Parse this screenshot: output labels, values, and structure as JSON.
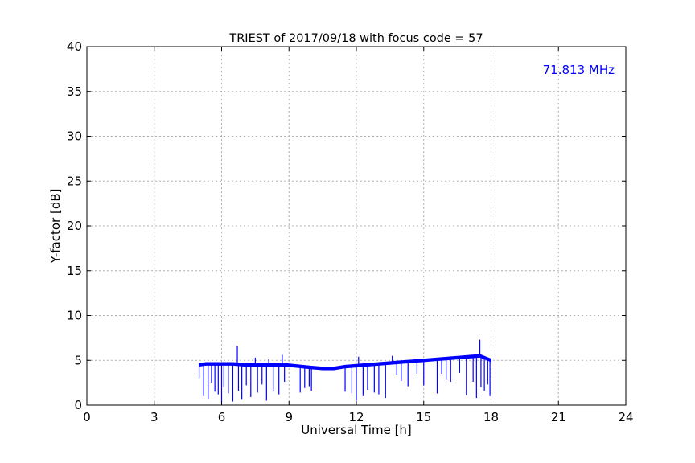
{
  "chart_data": {
    "type": "line",
    "title": "TRIEST of 2017/09/18 with focus code = 57",
    "xlabel": "Universal Time [h]",
    "ylabel": "Y-factor [dB]",
    "xlim": [
      0,
      24
    ],
    "ylim": [
      0,
      40
    ],
    "xticks": [
      0,
      3,
      6,
      9,
      12,
      15,
      18,
      21,
      24
    ],
    "yticks": [
      0,
      5,
      10,
      15,
      20,
      25,
      30,
      35,
      40
    ],
    "grid": true,
    "annotation": {
      "text": "71.813 MHz",
      "color": "#0000ff",
      "placement": "top-right"
    },
    "series": [
      {
        "color": "#0000ff",
        "x": [
          5.0,
          5.3,
          5.6,
          6.0,
          6.5,
          7.0,
          7.5,
          8.0,
          8.5,
          8.8,
          9.2,
          9.6,
          10.0,
          10.5,
          11.0,
          11.5,
          12.0,
          12.5,
          13.0,
          13.5,
          14.0,
          14.5,
          15.0,
          15.5,
          16.0,
          16.5,
          17.0,
          17.5,
          18.0
        ],
        "y": [
          4.5,
          4.6,
          4.6,
          4.6,
          4.6,
          4.5,
          4.5,
          4.5,
          4.5,
          4.5,
          4.4,
          4.3,
          4.2,
          4.1,
          4.1,
          4.3,
          4.4,
          4.5,
          4.6,
          4.7,
          4.8,
          4.9,
          5.0,
          5.1,
          5.2,
          5.3,
          5.4,
          5.5,
          5.0
        ],
        "spikes": [
          [
            5.0,
            3.0
          ],
          [
            5.2,
            1.0
          ],
          [
            5.4,
            0.7
          ],
          [
            5.55,
            2.5
          ],
          [
            5.7,
            1.5
          ],
          [
            5.85,
            1.2
          ],
          [
            6.0,
            0.1
          ],
          [
            6.1,
            2.0
          ],
          [
            6.3,
            1.3
          ],
          [
            6.5,
            0.4
          ],
          [
            6.7,
            6.6
          ],
          [
            6.75,
            1.6
          ],
          [
            6.9,
            0.6
          ],
          [
            7.1,
            2.2
          ],
          [
            7.3,
            0.9
          ],
          [
            7.5,
            5.3
          ],
          [
            7.6,
            1.4
          ],
          [
            7.8,
            2.3
          ],
          [
            8.0,
            0.5
          ],
          [
            8.1,
            5.1
          ],
          [
            8.3,
            1.5
          ],
          [
            8.55,
            1.2
          ],
          [
            8.7,
            5.6
          ],
          [
            8.8,
            2.6
          ],
          [
            9.5,
            1.4
          ],
          [
            9.7,
            1.9
          ],
          [
            9.9,
            2.1
          ],
          [
            10.0,
            1.6
          ],
          [
            11.5,
            1.5
          ],
          [
            11.8,
            1.3
          ],
          [
            12.0,
            0.5
          ],
          [
            12.1,
            5.4
          ],
          [
            12.3,
            1.0
          ],
          [
            12.5,
            1.7
          ],
          [
            12.8,
            1.4
          ],
          [
            13.0,
            1.2
          ],
          [
            13.3,
            0.8
          ],
          [
            13.6,
            5.5
          ],
          [
            13.8,
            3.4
          ],
          [
            14.0,
            2.7
          ],
          [
            14.3,
            2.1
          ],
          [
            14.7,
            3.5
          ],
          [
            15.0,
            2.2
          ],
          [
            15.6,
            1.3
          ],
          [
            15.8,
            3.5
          ],
          [
            16.0,
            2.8
          ],
          [
            16.2,
            2.6
          ],
          [
            16.6,
            3.6
          ],
          [
            16.9,
            1.1
          ],
          [
            17.2,
            2.6
          ],
          [
            17.35,
            0.8
          ],
          [
            17.5,
            7.3
          ],
          [
            17.55,
            2.0
          ],
          [
            17.7,
            1.6
          ],
          [
            17.85,
            2.3
          ],
          [
            17.95,
            1.0
          ]
        ]
      }
    ]
  }
}
